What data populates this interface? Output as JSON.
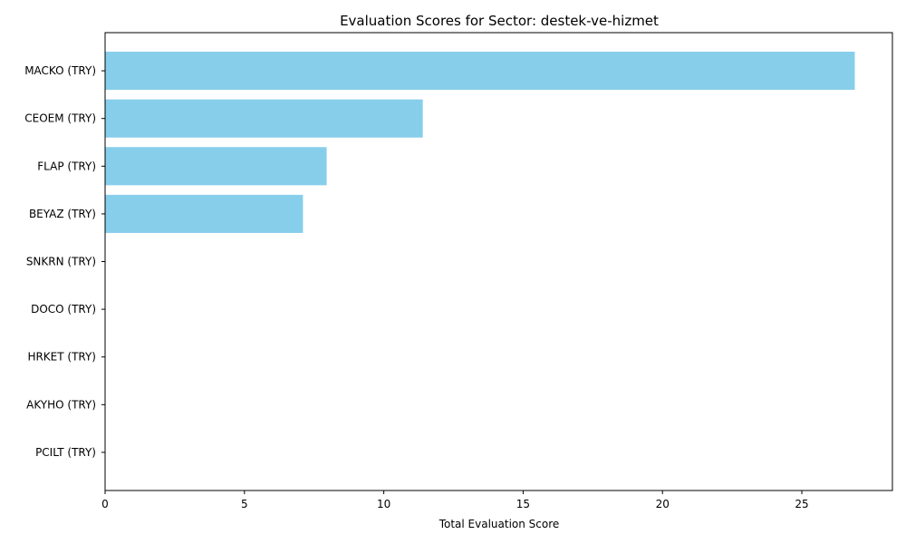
{
  "chart_data": {
    "type": "bar",
    "orientation": "horizontal",
    "title": "Evaluation Scores for Sector: destek-ve-hizmet",
    "xlabel": "Total Evaluation Score",
    "ylabel": "",
    "categories": [
      "MACKO (TRY)",
      "CEOEM (TRY)",
      "FLAP (TRY)",
      "BEYAZ (TRY)",
      "SNKRN (TRY)",
      "DOCO (TRY)",
      "HRKET (TRY)",
      "AKYHO (TRY)",
      "PCILT (TRY)"
    ],
    "values": [
      26.9,
      11.4,
      7.95,
      7.1,
      0,
      0,
      0,
      0,
      0
    ],
    "xlim": [
      0,
      28.25
    ],
    "xticks": [
      0,
      5,
      10,
      15,
      20,
      25
    ],
    "bar_color": "#87CEEB",
    "grid": false,
    "legend": "none"
  }
}
